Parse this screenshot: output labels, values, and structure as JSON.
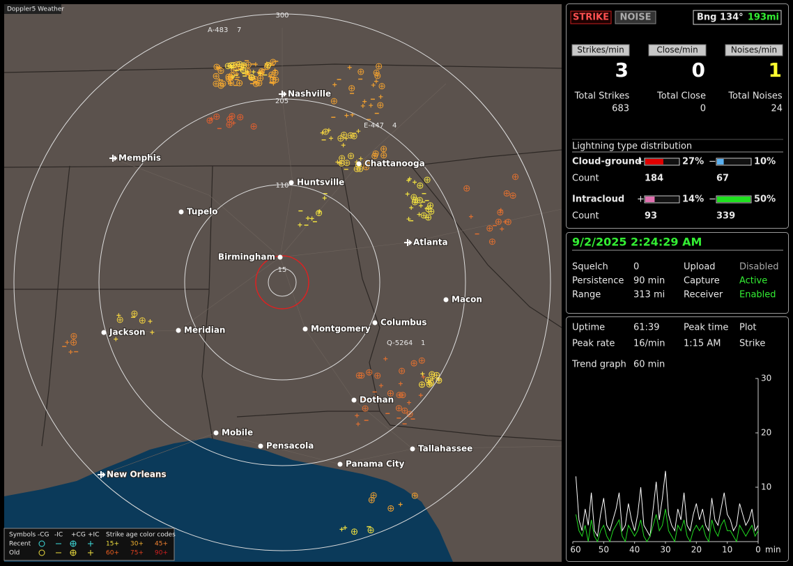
{
  "map": {
    "title": "Doppler5 Weather",
    "ring_labels": [
      "300",
      "110",
      "15"
    ],
    "cities": [
      "Nashville",
      "Memphis",
      "Chattanooga",
      "Huntsville",
      "Tupelo",
      "Birmingham",
      "Atlanta",
      "Macon",
      "Columbus",
      "Montgomery",
      "Meridian",
      "Jackson",
      "Dothan",
      "Mobile",
      "Pensacola",
      "Tallahassee",
      "Panama City",
      "New Orleans"
    ],
    "strike_tags": [
      "A-483",
      "7",
      "E-447",
      "4",
      "Q-5264",
      "1",
      "205"
    ],
    "legend": {
      "symbols": "Symbols",
      "heads": [
        "-CG",
        "-IC",
        "+CG",
        "+IC"
      ],
      "age_title": "Strike age color codes",
      "recent": "Recent",
      "old": "Old",
      "recent_ages": [
        "15+",
        "30+",
        "45+"
      ],
      "old_ages": [
        "60+",
        "75+",
        "90+"
      ]
    }
  },
  "status": {
    "strike_button": "STRIKE",
    "noise_button": "NOISE",
    "bearing": "Bng 134°",
    "distance": "193mi",
    "rate_heads": [
      "Strikes/min",
      "Close/min",
      "Noises/min"
    ],
    "rates": [
      3,
      0,
      1
    ],
    "total_heads": [
      "Total Strikes",
      "Total Close",
      "Total Noises"
    ],
    "totals": [
      683,
      0,
      24
    ],
    "distribution": {
      "title": "Lightning type distribution",
      "plus": "+",
      "minus": "−",
      "count_label": "Count",
      "rows": [
        {
          "name": "Cloud-ground",
          "plus": {
            "value": 27,
            "label": "27%"
          },
          "minus": {
            "value": 10,
            "label": "10%"
          },
          "counts": [
            184,
            67
          ]
        },
        {
          "name": "Intracloud",
          "plus": {
            "value": 14,
            "label": "14%"
          },
          "minus": {
            "value": 50,
            "label": "50%"
          },
          "counts": [
            93,
            339
          ]
        }
      ]
    }
  },
  "settings": {
    "datetime": "9/2/2025 2:24:29 AM",
    "rows": [
      [
        "Squelch",
        "0",
        "Upload",
        "Disabled"
      ],
      [
        "Persistence",
        "90 min",
        "Capture",
        "Active"
      ],
      [
        "Range",
        "313 mi",
        "Receiver",
        "Enabled"
      ]
    ]
  },
  "stats": {
    "rows": [
      [
        "Uptime",
        "61:39",
        "Peak time",
        "Plot"
      ],
      [
        "Peak rate",
        "16/min",
        "1:15 AM",
        "Strike"
      ]
    ],
    "trend_label": "Trend graph",
    "trend_window": "60 min"
  },
  "trend": {
    "type": "line",
    "xlim": [
      60,
      0
    ],
    "xticks": [
      60,
      50,
      40,
      30,
      20,
      10,
      0
    ],
    "x_unit": "min",
    "ylim": [
      0,
      30
    ],
    "yticks": [
      30,
      20,
      10
    ],
    "x": [
      59,
      58,
      57,
      56,
      55,
      54,
      53,
      52,
      51,
      50,
      49,
      48,
      47,
      46,
      45,
      44,
      43,
      42,
      41,
      40,
      39,
      38,
      37,
      36,
      35,
      34,
      33,
      32,
      31,
      30,
      29,
      28,
      27,
      26,
      25,
      24,
      23,
      22,
      21,
      20,
      19,
      18,
      17,
      16,
      15,
      14,
      13,
      12,
      11,
      10,
      9,
      8,
      7,
      6,
      5,
      4,
      3,
      2,
      1,
      0
    ],
    "series": [
      {
        "color": "#ffffff",
        "values": [
          12,
          4,
          2,
          6,
          3,
          9,
          2,
          1,
          5,
          8,
          3,
          2,
          4,
          6,
          9,
          2,
          3,
          7,
          4,
          2,
          5,
          10,
          3,
          2,
          1,
          6,
          11,
          4,
          8,
          13,
          5,
          3,
          2,
          6,
          4,
          9,
          3,
          2,
          5,
          7,
          4,
          6,
          3,
          2,
          8,
          4,
          3,
          6,
          9,
          5,
          4,
          2,
          3,
          7,
          5,
          3,
          4,
          6,
          2,
          3
        ]
      },
      {
        "color": "#22dd22",
        "values": [
          5,
          2,
          1,
          3,
          0,
          4,
          1,
          0,
          2,
          3,
          1,
          0,
          2,
          3,
          4,
          1,
          0,
          3,
          2,
          1,
          2,
          4,
          1,
          0,
          1,
          3,
          5,
          2,
          3,
          6,
          2,
          1,
          0,
          3,
          2,
          4,
          1,
          0,
          2,
          3,
          2,
          3,
          1,
          0,
          4,
          2,
          1,
          3,
          4,
          2,
          2,
          1,
          0,
          3,
          2,
          1,
          2,
          3,
          1,
          2
        ]
      }
    ]
  }
}
